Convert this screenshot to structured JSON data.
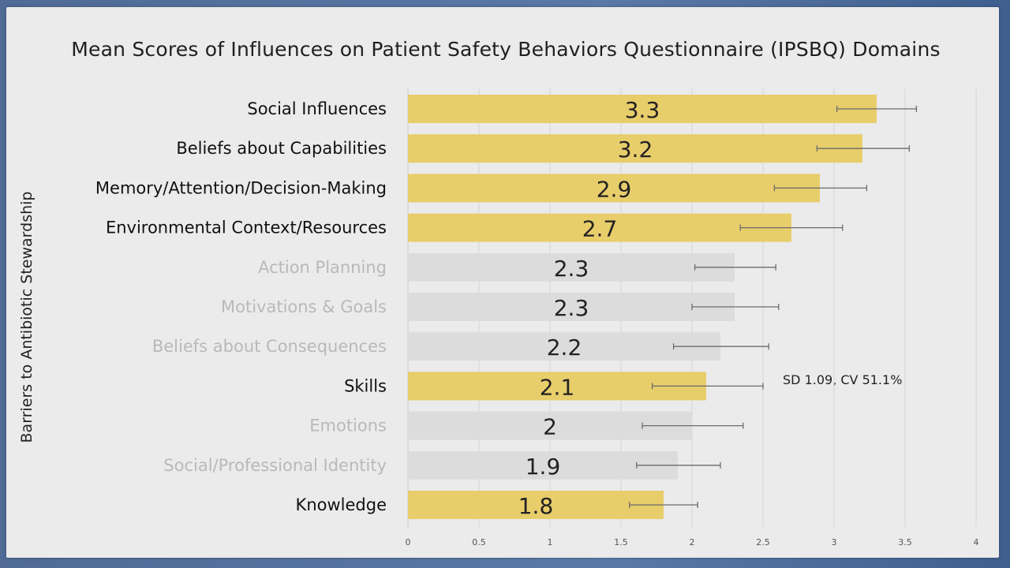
{
  "chart_data": {
    "type": "bar",
    "orientation": "horizontal",
    "title": "Mean Scores of Influences on Patient Safety Behaviors Questionnaire (IPSBQ) Domains",
    "ylabel": "Barriers to Antibiotic Stewardship",
    "xlabel": "",
    "xlim": [
      0,
      4
    ],
    "x_ticks": [
      "0",
      "0.5",
      "1",
      "1.5",
      "2",
      "2.5",
      "3",
      "3.5",
      "4"
    ],
    "grid": true,
    "categories": [
      "Social Influences",
      "Beliefs about Capabilities",
      "Memory/Attention/Decision-Making",
      "Environmental Context/Resources",
      "Action Planning",
      "Motivations & Goals",
      "Beliefs about Consequences",
      "Skills",
      "Emotions",
      "Social/Professional Identity",
      "Knowledge"
    ],
    "values": [
      3.3,
      3.2,
      2.9,
      2.7,
      2.3,
      2.3,
      2.2,
      2.1,
      2.0,
      1.9,
      1.8
    ],
    "value_labels": [
      "3.3",
      "3.2",
      "2.9",
      "2.7",
      "2.3",
      "2.3",
      "2.2",
      "2.1",
      "2",
      "1.9",
      "1.8"
    ],
    "error_low": [
      3.02,
      2.88,
      2.58,
      2.34,
      2.02,
      2.0,
      1.87,
      1.72,
      1.65,
      1.61,
      1.56
    ],
    "error_high": [
      3.58,
      3.53,
      3.23,
      3.06,
      2.59,
      2.61,
      2.54,
      2.5,
      2.36,
      2.2,
      2.04
    ],
    "highlighted": [
      true,
      true,
      true,
      true,
      false,
      false,
      false,
      true,
      false,
      false,
      true
    ],
    "highlight_color": "#e8cd6b",
    "muted_color": "#dcdcdc",
    "highlight_text_color": "#111111",
    "muted_text_color": "#b9b9b9",
    "annotation": "SD 1.09, CV 51.1%"
  }
}
